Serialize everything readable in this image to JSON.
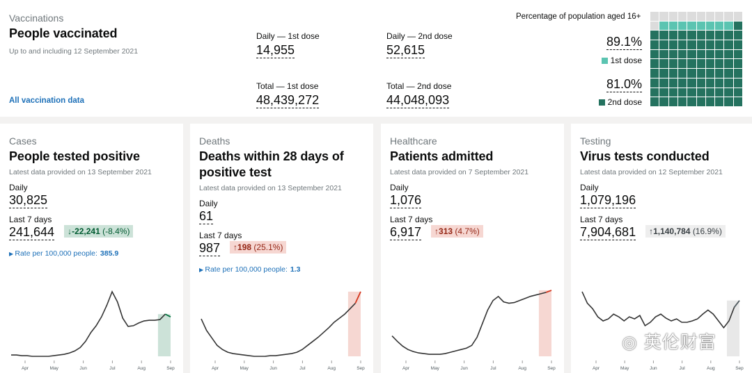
{
  "vaccinations": {
    "caption": "Vaccinations",
    "title": "People vaccinated",
    "date_note": "Up to and including 12 September 2021",
    "link": "All vaccination data",
    "daily_first_label": "Daily — 1st dose",
    "daily_first_value": "14,955",
    "daily_second_label": "Daily — 2nd dose",
    "daily_second_value": "52,615",
    "total_first_label": "Total — 1st dose",
    "total_first_value": "48,439,272",
    "total_second_label": "Total — 2nd dose",
    "total_second_value": "44,048,093",
    "pop_title": "Percentage of population aged 16+",
    "first_pct": "89.1%",
    "first_legend": "1st dose",
    "second_pct": "81.0%",
    "second_legend": "2nd dose",
    "first_dose_fraction": 0.891,
    "second_dose_fraction": 0.81,
    "colors": {
      "first": "#5bc4b1",
      "second": "#24725f",
      "empty": "#dcdcdc"
    }
  },
  "cards": [
    {
      "caption": "Cases",
      "title": "People tested positive",
      "date_note": "Latest data provided on 13 September 2021",
      "daily_label": "Daily",
      "daily_value": "30,825",
      "week_label": "Last 7 days",
      "week_value": "241,644",
      "change_arrow": "↓",
      "change_value": "-22,241",
      "change_pct": "(-8.4%)",
      "change_dir": "down",
      "rate_label": "Rate per 100,000 people:",
      "rate_value": "385.9",
      "months": [
        "Apr",
        "May",
        "Jun",
        "Jul",
        "Aug",
        "Sep"
      ]
    },
    {
      "caption": "Deaths",
      "title": "Deaths within 28 days of positive test",
      "date_note": "Latest data provided on 13 September 2021",
      "daily_label": "Daily",
      "daily_value": "61",
      "week_label": "Last 7 days",
      "week_value": "987",
      "change_arrow": "↑",
      "change_value": "198",
      "change_pct": "(25.1%)",
      "change_dir": "up",
      "rate_label": "Rate per 100,000 people:",
      "rate_value": "1.3",
      "months": [
        "Apr",
        "May",
        "Jun",
        "Jul",
        "Aug",
        "Sep"
      ]
    },
    {
      "caption": "Healthcare",
      "title": "Patients admitted",
      "date_note": "Latest data provided on 7 September 2021",
      "daily_label": "Daily",
      "daily_value": "1,076",
      "week_label": "Last 7 days",
      "week_value": "6,917",
      "change_arrow": "↑",
      "change_value": "313",
      "change_pct": "(4.7%)",
      "change_dir": "up",
      "months": [
        "Apr",
        "May",
        "Jun",
        "Jul",
        "Aug",
        "Sep"
      ]
    },
    {
      "caption": "Testing",
      "title": "Virus tests conducted",
      "date_note": "Latest data provided on 12 September 2021",
      "daily_label": "Daily",
      "daily_value": "1,079,196",
      "week_label": "Last 7 days",
      "week_value": "7,904,681",
      "change_arrow": "↑",
      "change_value": "1,140,784",
      "change_pct": "(16.9%)",
      "change_dir": "neutral",
      "months": [
        "Apr",
        "May",
        "Jun",
        "Jul",
        "Aug",
        "Sep"
      ]
    }
  ],
  "trend_shapes": [
    [
      0.02,
      0.02,
      0.01,
      0.01,
      0.0,
      0.0,
      0.0,
      0.0,
      0.01,
      0.02,
      0.03,
      0.05,
      0.08,
      0.13,
      0.22,
      0.35,
      0.45,
      0.58,
      0.75,
      0.95,
      0.8,
      0.56,
      0.44,
      0.45,
      0.49,
      0.52,
      0.53,
      0.53,
      0.54,
      0.62,
      0.58
    ],
    [
      0.55,
      0.38,
      0.27,
      0.16,
      0.1,
      0.06,
      0.04,
      0.03,
      0.02,
      0.01,
      0.0,
      0.0,
      0.0,
      0.01,
      0.01,
      0.02,
      0.03,
      0.04,
      0.06,
      0.1,
      0.16,
      0.22,
      0.28,
      0.35,
      0.42,
      0.5,
      0.56,
      0.62,
      0.7,
      0.78,
      0.95
    ],
    [
      0.3,
      0.22,
      0.15,
      0.1,
      0.07,
      0.05,
      0.04,
      0.03,
      0.03,
      0.03,
      0.04,
      0.06,
      0.08,
      0.1,
      0.12,
      0.16,
      0.28,
      0.48,
      0.68,
      0.82,
      0.88,
      0.8,
      0.78,
      0.79,
      0.82,
      0.85,
      0.88,
      0.9,
      0.92,
      0.94,
      0.97
    ],
    [
      0.95,
      0.78,
      0.7,
      0.58,
      0.52,
      0.55,
      0.62,
      0.58,
      0.52,
      0.58,
      0.55,
      0.6,
      0.45,
      0.5,
      0.58,
      0.62,
      0.56,
      0.52,
      0.55,
      0.5,
      0.5,
      0.52,
      0.55,
      0.62,
      0.68,
      0.62,
      0.52,
      0.42,
      0.52,
      0.72,
      0.82
    ]
  ],
  "chart_colors": {
    "line": "#333333",
    "down_fill": "#cce2d8",
    "down_stroke": "#00703c",
    "up_fill": "#f6d7d2",
    "up_stroke": "#d4351c",
    "neutral_fill": "#e8e8e8",
    "neutral_stroke": "#505a5f"
  },
  "watermark": "英伦财富"
}
